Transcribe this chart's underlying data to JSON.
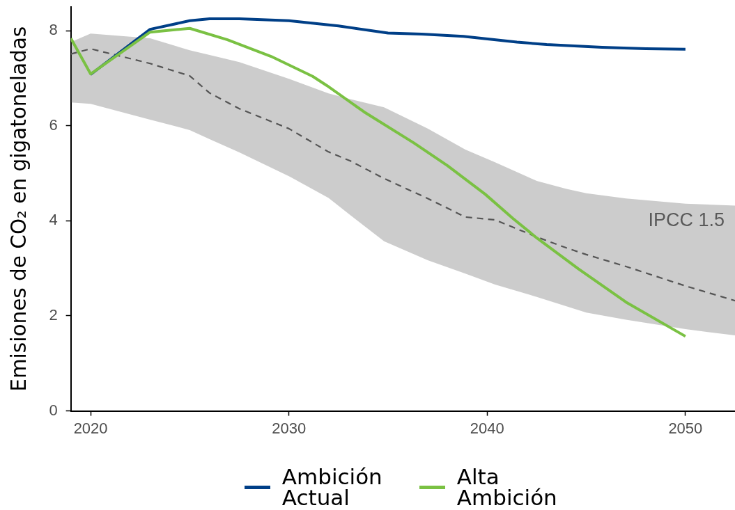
{
  "chart_data": {
    "type": "line",
    "ylabel": "Emisiones de CO₂ en gigatoneladas",
    "xlim": [
      2019,
      2052.5
    ],
    "xticks": [
      2020,
      2030,
      2040,
      2050
    ],
    "ylim": [
      0,
      8.5
    ],
    "yticks": [
      0,
      2,
      4,
      6,
      8
    ],
    "grid": false,
    "legend": "bottom",
    "marker": "none",
    "annotations": [
      "IPCC 1.5"
    ],
    "series": [
      {
        "color": "#555555",
        "line_style": "dashed",
        "x": [
          2019,
          2020,
          2023,
          2025,
          2026,
          2027.5,
          2030,
          2032,
          2033.1,
          2034.8,
          2037,
          2038.9,
          2040.4,
          2042.5,
          2044,
          2045,
          2047,
          2050,
          2052.5
        ],
        "values": [
          7.51,
          7.62,
          7.31,
          7.05,
          6.69,
          6.36,
          5.94,
          5.45,
          5.26,
          4.89,
          4.47,
          4.08,
          4.02,
          3.66,
          3.43,
          3.29,
          3.04,
          2.63,
          2.32
        ],
        "upper": [
          7.76,
          7.94,
          7.84,
          7.59,
          7.49,
          7.34,
          6.99,
          6.68,
          6.56,
          6.39,
          5.94,
          5.5,
          5.23,
          4.84,
          4.67,
          4.58,
          4.47,
          4.36,
          4.32
        ],
        "lower": [
          6.49,
          6.46,
          6.13,
          5.91,
          5.72,
          5.44,
          4.94,
          4.48,
          4.12,
          3.57,
          3.17,
          2.89,
          2.66,
          2.4,
          2.2,
          2.07,
          1.92,
          1.72,
          1.59
        ]
      },
      {
        "name": "Ambición Actual",
        "color": "#003f87",
        "x": [
          2020,
          2023,
          2025,
          2026,
          2027.5,
          2030,
          2032.5,
          2035,
          2036.7,
          2038.8,
          2041.5,
          2043,
          2045.8,
          2048,
          2050
        ],
        "values": [
          7.08,
          8.03,
          8.21,
          8.25,
          8.25,
          8.21,
          8.1,
          7.95,
          7.93,
          7.88,
          7.76,
          7.71,
          7.65,
          7.62,
          7.61
        ]
      },
      {
        "name": "Alta Ambición",
        "color": "#7ac143",
        "x": [
          2019,
          2020,
          2023,
          2025,
          2026.9,
          2029.1,
          2031.2,
          2031.9,
          2033.8,
          2036.3,
          2038,
          2039.9,
          2041.3,
          2042.5,
          2044.6,
          2047,
          2050
        ],
        "values": [
          7.84,
          7.09,
          7.97,
          8.05,
          7.81,
          7.46,
          7.04,
          6.85,
          6.29,
          5.64,
          5.16,
          4.56,
          4.05,
          3.64,
          2.99,
          2.29,
          1.57
        ]
      }
    ]
  }
}
